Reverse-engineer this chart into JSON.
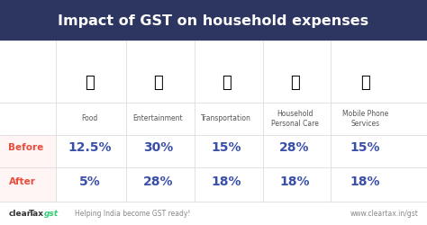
{
  "title": "Impact of GST on household expenses",
  "title_bg": "#2d3561",
  "title_color": "#ffffff",
  "bg_color": "#ffffff",
  "categories": [
    "Food",
    "Entertainment",
    "Transportation",
    "Household\nPersonal Care",
    "Mobile Phone\nServices"
  ],
  "before_label": "Before",
  "after_label": "After",
  "before_values": [
    "12.5%",
    "30%",
    "15%",
    "28%",
    "15%"
  ],
  "after_values": [
    "5%",
    "28%",
    "18%",
    "18%",
    "18%"
  ],
  "label_color_before": "#e74c3c",
  "label_color_after": "#e74c3c",
  "value_color": "#3a4fa8",
  "category_color": "#555555",
  "grid_color": "#dddddd",
  "footer_right": "www.cleartax.in/gst",
  "footer_color": "#333333",
  "footer_gst_color": "#2ecc71",
  "row_separator_color": "#cccccc"
}
